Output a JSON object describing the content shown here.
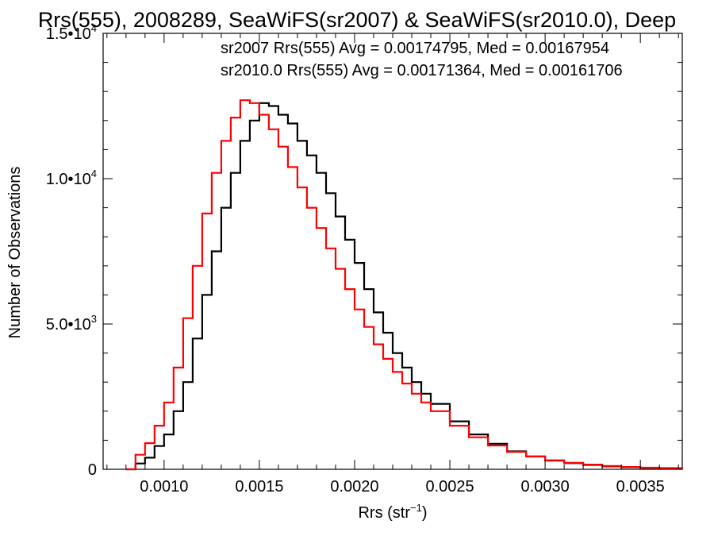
{
  "chart_data": {
    "type": "histogram-step",
    "title": "Rrs(555), 2008289, SeaWiFS(sr2007) & SeaWiFS(sr2010.0), Deep",
    "xlabel_main": "Rrs (str",
    "xlabel_sup": "−1",
    "xlabel_close": ")",
    "ylabel": "Number of Observations",
    "xlim": [
      0.00068,
      0.00372
    ],
    "ylim": [
      0,
      15000
    ],
    "x_ticks": [
      {
        "value": 0.001,
        "label": "0.0010"
      },
      {
        "value": 0.0015,
        "label": "0.0015"
      },
      {
        "value": 0.002,
        "label": "0.0020"
      },
      {
        "value": 0.0025,
        "label": "0.0025"
      },
      {
        "value": 0.003,
        "label": "0.0030"
      },
      {
        "value": 0.0035,
        "label": "0.0035"
      }
    ],
    "y_ticks": [
      {
        "value": 0,
        "mant": "0",
        "exp": ""
      },
      {
        "value": 5000,
        "mant": "5.0•10",
        "exp": "3"
      },
      {
        "value": 10000,
        "mant": "1.0•10",
        "exp": "4"
      },
      {
        "value": 15000,
        "mant": "1.5•10",
        "exp": "4"
      }
    ],
    "annotations": [
      {
        "text": "sr2007 Rrs(555) Avg = 0.00174795, Med = 0.00167954",
        "color": "#000000"
      },
      {
        "text": "sr2010.0 Rrs(555) Avg = 0.00171364, Med = 0.00161706",
        "color": "#ff0000"
      }
    ],
    "series": [
      {
        "name": "sr2007",
        "color": "#000000",
        "x": [
          0.0008,
          0.00085,
          0.0009,
          0.00095,
          0.001,
          0.00105,
          0.0011,
          0.00115,
          0.0012,
          0.00125,
          0.0013,
          0.00135,
          0.0014,
          0.00145,
          0.0015,
          0.00155,
          0.0016,
          0.00165,
          0.0017,
          0.00175,
          0.0018,
          0.00185,
          0.0019,
          0.00195,
          0.002,
          0.00205,
          0.0021,
          0.00215,
          0.0022,
          0.00225,
          0.0023,
          0.00235,
          0.0024,
          0.0025,
          0.0026,
          0.0027,
          0.0028,
          0.0029,
          0.003,
          0.0031,
          0.0032,
          0.0033,
          0.0034,
          0.0035,
          0.0036,
          0.00372
        ],
        "y": [
          0,
          200,
          400,
          800,
          1200,
          2000,
          3000,
          4500,
          6000,
          7500,
          9000,
          10200,
          11300,
          12000,
          12600,
          12500,
          12200,
          11900,
          11300,
          10800,
          10200,
          9500,
          8700,
          7900,
          7100,
          6200,
          5400,
          4700,
          4000,
          3500,
          3000,
          2600,
          2250,
          1650,
          1200,
          880,
          620,
          440,
          300,
          210,
          150,
          100,
          70,
          50,
          35,
          20
        ]
      },
      {
        "name": "sr2010.0",
        "color": "#ff0000",
        "x": [
          0.0008,
          0.00085,
          0.0009,
          0.00095,
          0.001,
          0.00105,
          0.0011,
          0.00115,
          0.0012,
          0.00125,
          0.0013,
          0.00135,
          0.0014,
          0.00145,
          0.0015,
          0.00155,
          0.0016,
          0.00165,
          0.0017,
          0.00175,
          0.0018,
          0.00185,
          0.0019,
          0.00195,
          0.002,
          0.00205,
          0.0021,
          0.00215,
          0.0022,
          0.00225,
          0.0023,
          0.00235,
          0.0024,
          0.0025,
          0.0026,
          0.0027,
          0.0028,
          0.0029,
          0.003,
          0.0031,
          0.0032,
          0.0033,
          0.0034,
          0.0035,
          0.0036,
          0.00372
        ],
        "y": [
          0,
          500,
          900,
          1500,
          2300,
          3500,
          5200,
          7000,
          8800,
          10200,
          11300,
          12100,
          12700,
          12600,
          12200,
          11700,
          11100,
          10400,
          9700,
          9000,
          8300,
          7600,
          6900,
          6200,
          5500,
          4900,
          4300,
          3800,
          3350,
          2950,
          2600,
          2300,
          2000,
          1500,
          1100,
          820,
          600,
          440,
          310,
          220,
          160,
          115,
          80,
          55,
          40,
          25
        ]
      }
    ]
  }
}
